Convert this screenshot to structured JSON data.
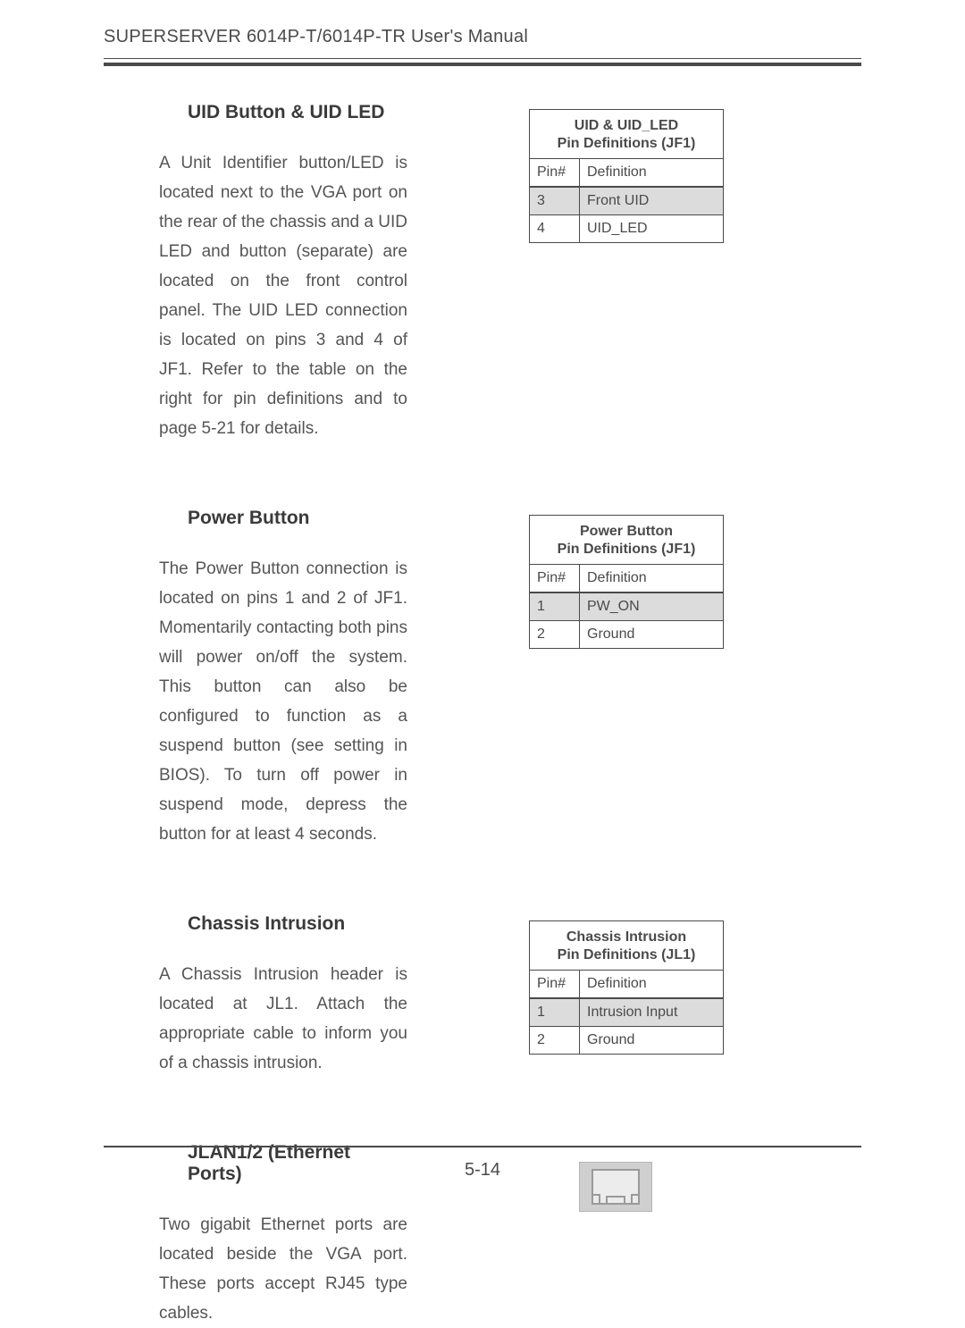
{
  "header": {
    "left_caps": "SUPERSERVER",
    "left_tail": " 6014P-T/6014P-TR User's Manual"
  },
  "sections": [
    {
      "heading": "UID Button & UID LED",
      "body": "A Unit Identifier button/LED is located next to the VGA port on the rear of the chassis and a UID LED and button (separate) are located on the front control panel. The UID LED connection is located on pins 3 and 4 of JF1.  Refer to the table on the right for pin definitions and to page 5-21 for details.",
      "table": {
        "title_line1": "UID & UID_LED",
        "title_line2": "Pin Definitions (JF1)",
        "col_pin": "Pin#",
        "col_def": "Definition",
        "rows": [
          {
            "pin": "3",
            "def": "Front UID",
            "shaded": true
          },
          {
            "pin": "4",
            "def": "UID_LED",
            "shaded": false
          }
        ]
      }
    },
    {
      "heading": "Power Button",
      "body": "The Power Button connection is located on pins 1 and 2 of JF1.  Momentarily contacting both pins will power on/off the system.  This button can also be configured to function as a suspend button (see setting in BIOS).  To turn off  power in suspend mode, depress the button for at least 4 seconds.",
      "table": {
        "title_line1": "Power Button",
        "title_line2": "Pin Definitions (JF1)",
        "col_pin": "Pin#",
        "col_def": "Definition",
        "rows": [
          {
            "pin": "1",
            "def": "PW_ON",
            "shaded": true
          },
          {
            "pin": "2",
            "def": "Ground",
            "shaded": false
          }
        ]
      }
    },
    {
      "heading": "Chassis Intrusion",
      "body": "A Chassis Intrusion header is located at JL1.  Attach the appropriate cable to inform you of a chassis intrusion.",
      "table": {
        "title_line1": "Chassis Intrusion",
        "title_line2": "Pin Definitions (JL1)",
        "col_pin": "Pin#",
        "col_def": "Definition",
        "rows": [
          {
            "pin": "1",
            "def": "Intrusion Input",
            "shaded": true
          },
          {
            "pin": "2",
            "def": "Ground",
            "shaded": false
          }
        ]
      }
    },
    {
      "heading": "JLAN1/2 (Ethernet Ports)",
      "body": "Two gigabit Ethernet ports are located beside the VGA port.  These ports accept RJ45 type cables.",
      "graphic": "ethernet-port"
    }
  ],
  "page_number": "5-14"
}
